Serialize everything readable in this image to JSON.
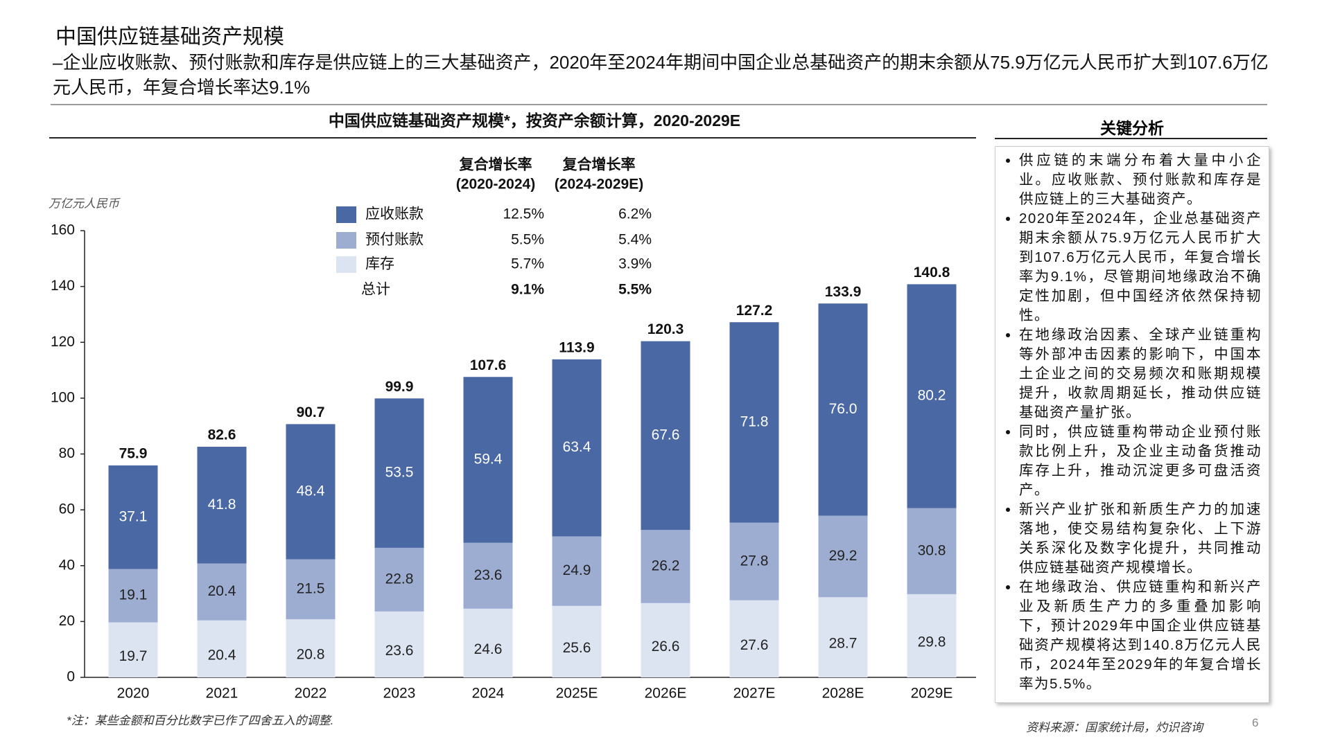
{
  "header": {
    "title": "中国供应链基础资产规模",
    "subtitle": "–企业应收账款、预付账款和库存是供应链上的三大基础资产，2020年至2024年期间中国企业总基础资产的期末余额从75.9万亿元人民币扩大到107.6万亿元人民币，年复合增长率达9.1%"
  },
  "chart_data": {
    "type": "stacked_bar",
    "title": "中国供应链基础资产规模*，按资产余额计算，2020-2029E",
    "y_label": "万亿元人民币",
    "categories": [
      "2020",
      "2021",
      "2022",
      "2023",
      "2024",
      "2025E",
      "2026E",
      "2027E",
      "2028E",
      "2029E"
    ],
    "series": [
      {
        "name": "应收账款",
        "color": "#4a68a3",
        "label_color": "#ffffff",
        "values": [
          37.1,
          41.8,
          48.4,
          53.5,
          59.4,
          63.4,
          67.6,
          71.8,
          76.0,
          80.2
        ],
        "value_labels": [
          "37.1",
          "41.8",
          "48.4",
          "53.5",
          "59.4",
          "63.4",
          "67.6",
          "71.8",
          "76.0",
          "80.2"
        ]
      },
      {
        "name": "预付账款",
        "color": "#9dadd2",
        "label_color": "#222222",
        "values": [
          19.1,
          20.4,
          21.5,
          22.8,
          23.6,
          24.9,
          26.2,
          27.8,
          29.2,
          30.8
        ]
      },
      {
        "name": "库存",
        "color": "#dde4f1",
        "label_color": "#222222",
        "values": [
          19.7,
          20.4,
          20.8,
          23.6,
          24.6,
          25.6,
          26.6,
          27.6,
          28.7,
          29.8
        ]
      }
    ],
    "totals": [
      75.9,
      82.6,
      90.7,
      99.9,
      107.6,
      113.9,
      120.3,
      127.2,
      133.9,
      140.8
    ],
    "ylim": [
      0,
      160
    ],
    "yticks": [
      0,
      20,
      40,
      60,
      80,
      100,
      120,
      140,
      160
    ],
    "cagr": {
      "headers": [
        [
          "复合增长率",
          "(2020-2024)"
        ],
        [
          "复合增长率",
          "(2024-2029E)"
        ]
      ],
      "rows": [
        [
          "12.5%",
          "6.2%"
        ],
        [
          "5.5%",
          "5.4%"
        ],
        [
          "5.7%",
          "3.9%"
        ]
      ],
      "total_label": "总计",
      "total": [
        "9.1%",
        "5.5%"
      ]
    }
  },
  "sidebar": {
    "title": "关键分析",
    "bullets": [
      "供应链的末端分布着大量中小企业。应收账款、预付账款和库存是供应链上的三大基础资产。",
      "2020年至2024年，企业总基础资产期末余额从75.9万亿元人民币扩大到107.6万亿元人民币，年复合增长率为9.1%，尽管期间地缘政治不确定性加剧，但中国经济依然保持韧性。",
      "在地缘政治因素、全球产业链重构等外部冲击因素的影响下，中国本土企业之间的交易频次和账期规模提升，收款周期延长，推动供应链基础资产量扩张。",
      "同时，供应链重构带动企业预付账款比例上升，及企业主动备货推动库存上升，推动沉淀更多可盘活资产。",
      "新兴产业扩张和新质生产力的加速落地，使交易结构复杂化、上下游关系深化及数字化提升，共同推动供应链基础资产规模增长。",
      "在地缘政治、供应链重构和新兴产业及新质生产力的多重叠加影响下，预计2029年中国企业供应链基础资产规模将达到140.8万亿元人民币，2024年至2029年的年复合增长率为5.5%。"
    ]
  },
  "footer": {
    "note": "*注：某些金额和百分比数字已作了四舍五入的调整.",
    "source": "资料来源：国家统计局，灼识咨询",
    "page": "6"
  }
}
